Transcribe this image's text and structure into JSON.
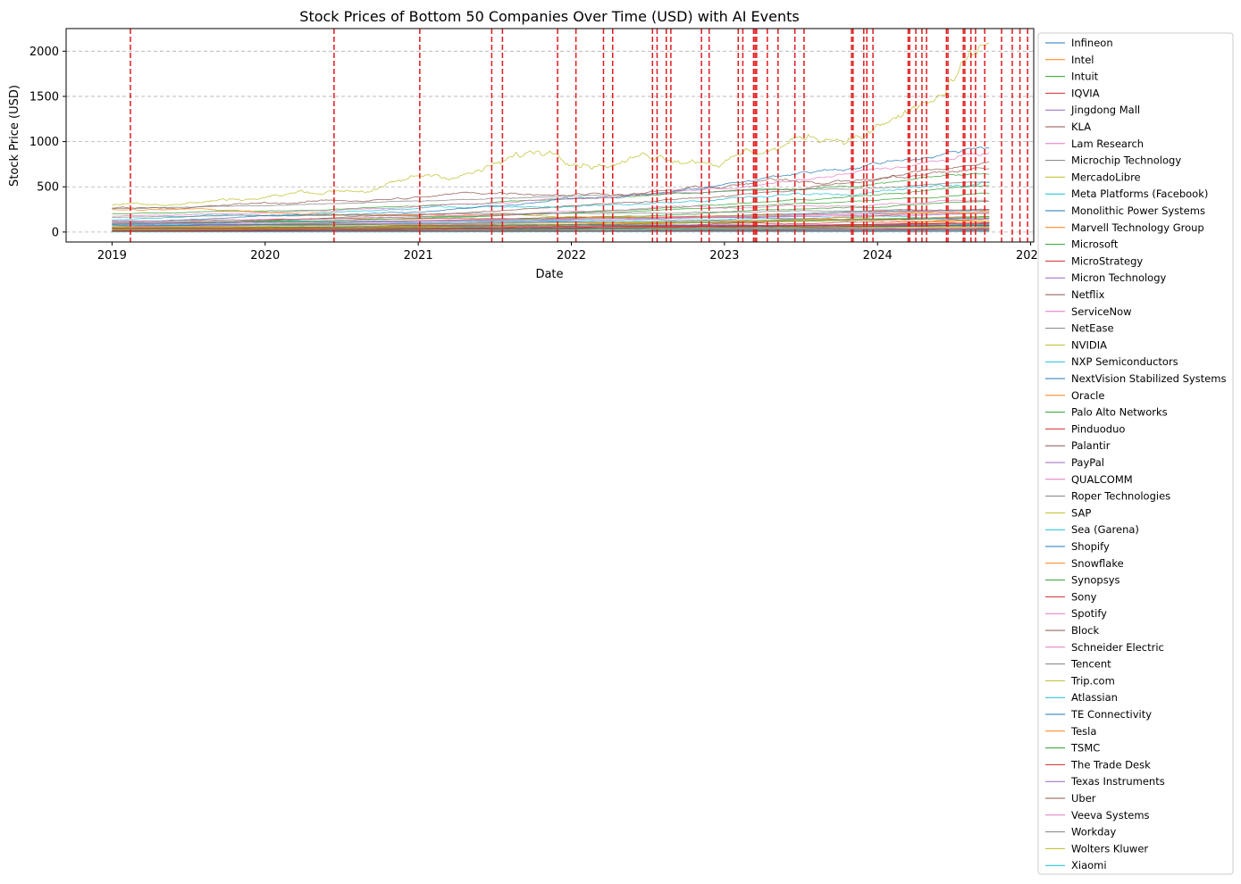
{
  "chart_data": {
    "type": "line",
    "title": "Stock Prices of Bottom 50 Companies Over Time (USD) with AI Events",
    "xlabel": "Date",
    "ylabel": "Stock Price (USD)",
    "x_range": [
      2018.7,
      2025.02
    ],
    "ylim": [
      -110,
      2250
    ],
    "x_ticks": [
      {
        "value": 2019,
        "label": "2019"
      },
      {
        "value": 2020,
        "label": "2020"
      },
      {
        "value": 2021,
        "label": "2021"
      },
      {
        "value": 2022,
        "label": "2022"
      },
      {
        "value": 2023,
        "label": "2023"
      },
      {
        "value": 2024,
        "label": "2024"
      },
      {
        "value": 2025,
        "label": "2025"
      }
    ],
    "y_ticks": [
      {
        "value": 0,
        "label": "0"
      },
      {
        "value": 500,
        "label": "500"
      },
      {
        "value": 1000,
        "label": "1000"
      },
      {
        "value": 1500,
        "label": "1500"
      },
      {
        "value": 2000,
        "label": "2000"
      }
    ],
    "grid": "y-dashed",
    "legend_position": "outside-right",
    "event_line_color": "#e31a1c",
    "ai_events": [
      2019.12,
      2020.45,
      2021.01,
      2021.48,
      2021.55,
      2021.91,
      2022.03,
      2022.21,
      2022.27,
      2022.53,
      2022.56,
      2022.62,
      2022.65,
      2022.85,
      2022.9,
      2023.09,
      2023.12,
      2023.19,
      2023.2,
      2023.21,
      2023.28,
      2023.35,
      2023.46,
      2023.52,
      2023.83,
      2023.84,
      2023.91,
      2023.93,
      2023.97,
      2024.2,
      2024.21,
      2024.25,
      2024.29,
      2024.32,
      2024.45,
      2024.46,
      2024.56,
      2024.57,
      2024.61,
      2024.64,
      2024.7,
      2024.81,
      2024.88,
      2024.93,
      2024.98
    ],
    "x_start": 2019.0,
    "x_end": 2024.73,
    "series": [
      {
        "name": "Infineon",
        "color": "#1f77b4",
        "start": 25,
        "end": 35,
        "vol": 0.05
      },
      {
        "name": "Intel",
        "color": "#ff7f0e",
        "start": 50,
        "end": 22,
        "vol": 0.08
      },
      {
        "name": "Intuit",
        "color": "#2ca02c",
        "start": 200,
        "end": 640,
        "vol": 0.08
      },
      {
        "name": "IQVIA",
        "color": "#d62728",
        "start": 120,
        "end": 250,
        "vol": 0.06
      },
      {
        "name": "Jingdong Mall",
        "color": "#9467bd",
        "start": 22,
        "end": 35,
        "vol": 0.08
      },
      {
        "name": "KLA",
        "color": "#8c564b",
        "start": 90,
        "end": 780,
        "vol": 0.1
      },
      {
        "name": "Lam Research",
        "color": "#e377c2",
        "start": 30,
        "end": 80,
        "vol": 0.1
      },
      {
        "name": "Microchip Technology",
        "color": "#7f7f7f",
        "start": 35,
        "end": 80,
        "vol": 0.08
      },
      {
        "name": "MercadoLibre",
        "color": "#bcbd22",
        "start": 300,
        "end": 2080,
        "vol": 0.25
      },
      {
        "name": "Meta Platforms (Facebook)",
        "color": "#17becf",
        "start": 135,
        "end": 560,
        "vol": 0.15
      },
      {
        "name": "Monolithic Power Systems",
        "color": "#1f77b4",
        "start": 115,
        "end": 930,
        "vol": 0.12
      },
      {
        "name": "Marvell Technology Group",
        "color": "#ff7f0e",
        "start": 16,
        "end": 70,
        "vol": 0.08
      },
      {
        "name": "Microsoft",
        "color": "#2ca02c",
        "start": 100,
        "end": 430,
        "vol": 0.06
      },
      {
        "name": "MicroStrategy",
        "color": "#d62728",
        "start": 12,
        "end": 150,
        "vol": 0.2
      },
      {
        "name": "Micron Technology",
        "color": "#9467bd",
        "start": 33,
        "end": 100,
        "vol": 0.1
      },
      {
        "name": "Netflix",
        "color": "#8c564b",
        "start": 270,
        "end": 700,
        "vol": 0.15
      },
      {
        "name": "ServiceNow",
        "color": "#e377c2",
        "start": 175,
        "end": 880,
        "vol": 0.1
      },
      {
        "name": "NetEase",
        "color": "#7f7f7f",
        "start": 45,
        "end": 90,
        "vol": 0.07
      },
      {
        "name": "NVIDIA",
        "color": "#bcbd22",
        "start": 4,
        "end": 120,
        "vol": 0.1
      },
      {
        "name": "NXP Semiconductors",
        "color": "#17becf",
        "start": 75,
        "end": 240,
        "vol": 0.08
      },
      {
        "name": "NextVision Stabilized Systems",
        "color": "#1f77b4",
        "start": 5,
        "end": 12,
        "vol": 0.08
      },
      {
        "name": "Oracle",
        "color": "#ff7f0e",
        "start": 45,
        "end": 165,
        "vol": 0.06
      },
      {
        "name": "Palo Alto Networks",
        "color": "#2ca02c",
        "start": 60,
        "end": 340,
        "vol": 0.08
      },
      {
        "name": "Pinduoduo",
        "color": "#d62728",
        "start": 22,
        "end": 100,
        "vol": 0.15
      },
      {
        "name": "Palantir",
        "color": "#8c564b",
        "start": 10,
        "end": 35,
        "vol": 0.1
      },
      {
        "name": "PayPal",
        "color": "#9467bd",
        "start": 85,
        "end": 72,
        "vol": 0.12
      },
      {
        "name": "QUALCOMM",
        "color": "#e377c2",
        "start": 55,
        "end": 170,
        "vol": 0.08
      },
      {
        "name": "Roper Technologies",
        "color": "#7f7f7f",
        "start": 260,
        "end": 550,
        "vol": 0.05
      },
      {
        "name": "SAP",
        "color": "#bcbd22",
        "start": 95,
        "end": 220,
        "vol": 0.05
      },
      {
        "name": "Sea (Garena)",
        "color": "#17becf",
        "start": 12,
        "end": 90,
        "vol": 0.2
      },
      {
        "name": "Shopify",
        "color": "#1f77b4",
        "start": 15,
        "end": 78,
        "vol": 0.15
      },
      {
        "name": "Snowflake",
        "color": "#ff7f0e",
        "start": 250,
        "end": 120,
        "vol": 0.15
      },
      {
        "name": "Synopsys",
        "color": "#2ca02c",
        "start": 85,
        "end": 510,
        "vol": 0.08
      },
      {
        "name": "Sony",
        "color": "#d62728",
        "start": 10,
        "end": 20,
        "vol": 0.05
      },
      {
        "name": "Spotify",
        "color": "#e377c2",
        "start": 115,
        "end": 340,
        "vol": 0.12
      },
      {
        "name": "Block",
        "color": "#8c564b",
        "start": 55,
        "end": 65,
        "vol": 0.15
      },
      {
        "name": "Schneider Electric",
        "color": "#e377c2",
        "start": 60,
        "end": 245,
        "vol": 0.06
      },
      {
        "name": "Tencent",
        "color": "#7f7f7f",
        "start": 40,
        "end": 48,
        "vol": 0.08
      },
      {
        "name": "Trip.com",
        "color": "#bcbd22",
        "start": 28,
        "end": 55,
        "vol": 0.08
      },
      {
        "name": "Atlassian",
        "color": "#17becf",
        "start": 90,
        "end": 165,
        "vol": 0.12
      },
      {
        "name": "TE Connectivity",
        "color": "#1f77b4",
        "start": 75,
        "end": 150,
        "vol": 0.05
      },
      {
        "name": "Tesla",
        "color": "#ff7f0e",
        "start": 20,
        "end": 230,
        "vol": 0.2
      },
      {
        "name": "TSMC",
        "color": "#2ca02c",
        "start": 37,
        "end": 175,
        "vol": 0.07
      },
      {
        "name": "The Trade Desk",
        "color": "#d62728",
        "start": 12,
        "end": 105,
        "vol": 0.12
      },
      {
        "name": "Texas Instruments",
        "color": "#9467bd",
        "start": 95,
        "end": 205,
        "vol": 0.05
      },
      {
        "name": "Uber",
        "color": "#8c564b",
        "start": 42,
        "end": 72,
        "vol": 0.12
      },
      {
        "name": "Veeva Systems",
        "color": "#e377c2",
        "start": 90,
        "end": 210,
        "vol": 0.08
      },
      {
        "name": "Workday",
        "color": "#7f7f7f",
        "start": 160,
        "end": 250,
        "vol": 0.08
      },
      {
        "name": "Wolters Kluwer",
        "color": "#bcbd22",
        "start": 55,
        "end": 165,
        "vol": 0.04
      },
      {
        "name": "Xiaomi",
        "color": "#17becf",
        "start": 1.5,
        "end": 3,
        "vol": 0.1
      }
    ]
  }
}
